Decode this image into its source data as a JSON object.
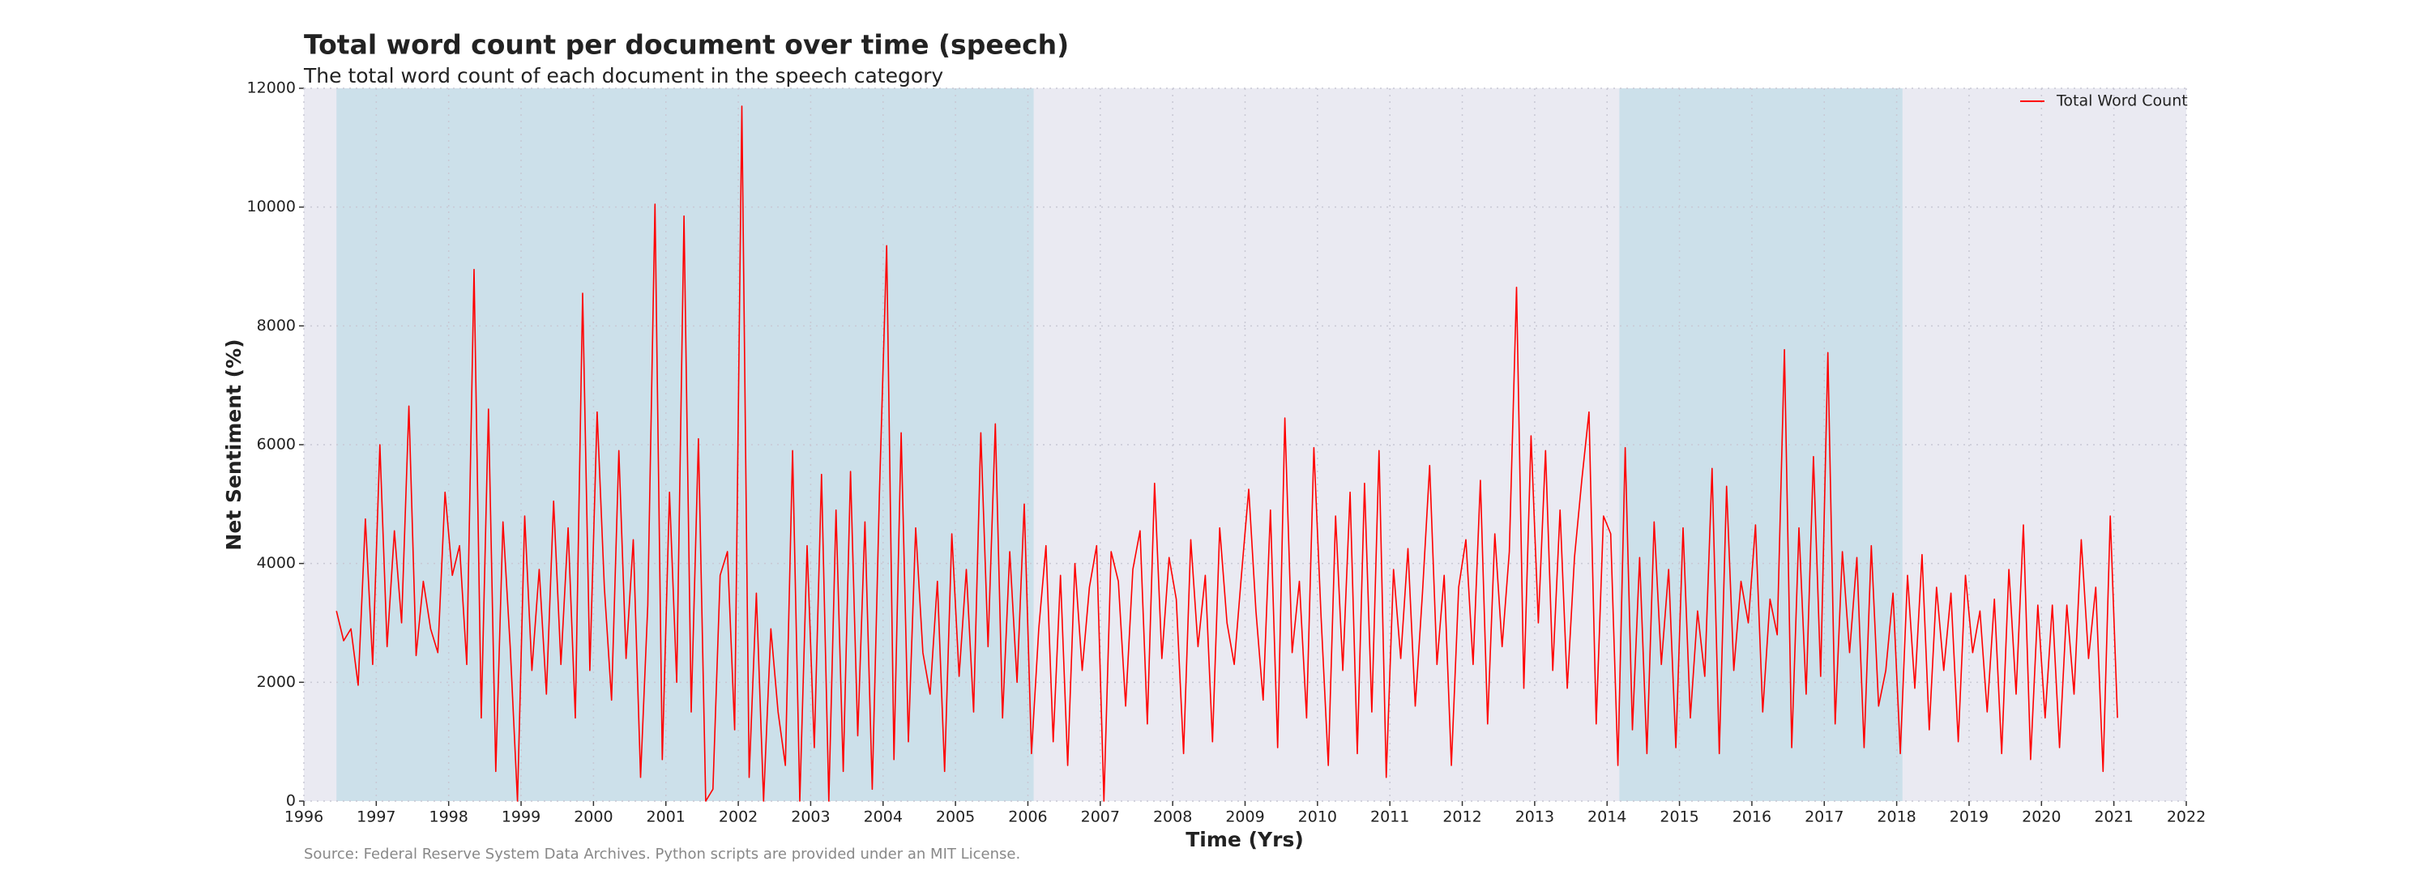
{
  "chart_data": {
    "type": "line",
    "title": "Total word count per document over time (speech)",
    "subtitle": "The total word count of each document in the speech category",
    "x_label": "Time (Yrs)",
    "y_label": "Net Sentiment (%)",
    "source": "Source: Federal Reserve System Data Archives. Python scripts are provided under an MIT License.",
    "xlim": [
      1996,
      2022
    ],
    "xticks": [
      1996,
      1997,
      1998,
      1999,
      2000,
      2001,
      2002,
      2003,
      2004,
      2005,
      2006,
      2007,
      2008,
      2009,
      2010,
      2011,
      2012,
      2013,
      2014,
      2015,
      2016,
      2017,
      2018,
      2019,
      2020,
      2021,
      2022
    ],
    "ylim": [
      0,
      12000
    ],
    "yticks": [
      0,
      2000,
      4000,
      6000,
      8000,
      10000,
      12000
    ],
    "grid": true,
    "legend": "upper right",
    "shaded_regions": [
      [
        1996.45,
        2006.08
      ],
      [
        2014.17,
        2018.08
      ]
    ],
    "shade_color": "#cce0ea",
    "background": "#eaeaf2",
    "x": [
      1996.45,
      1996.55,
      1996.65,
      1996.75,
      1996.85,
      1996.95,
      1997.05,
      1997.15,
      1997.25,
      1997.35,
      1997.45,
      1997.55,
      1997.65,
      1997.75,
      1997.85,
      1997.95,
      1998.05,
      1998.15,
      1998.25,
      1998.35,
      1998.45,
      1998.55,
      1998.65,
      1998.75,
      1998.85,
      1998.95,
      1999.05,
      1999.15,
      1999.25,
      1999.35,
      1999.45,
      1999.55,
      1999.65,
      1999.75,
      1999.85,
      1999.95,
      2000.05,
      2000.15,
      2000.25,
      2000.35,
      2000.45,
      2000.55,
      2000.65,
      2000.75,
      2000.85,
      2000.95,
      2001.05,
      2001.15,
      2001.25,
      2001.35,
      2001.45,
      2001.55,
      2001.65,
      2001.75,
      2001.85,
      2001.95,
      2002.05,
      2002.15,
      2002.25,
      2002.35,
      2002.45,
      2002.55,
      2002.65,
      2002.75,
      2002.85,
      2002.95,
      2003.05,
      2003.15,
      2003.25,
      2003.35,
      2003.45,
      2003.55,
      2003.65,
      2003.75,
      2003.85,
      2003.95,
      2004.05,
      2004.15,
      2004.25,
      2004.35,
      2004.45,
      2004.55,
      2004.65,
      2004.75,
      2004.85,
      2004.95,
      2005.05,
      2005.15,
      2005.25,
      2005.35,
      2005.45,
      2005.55,
      2005.65,
      2005.75,
      2005.85,
      2005.95,
      2006.05,
      2006.15,
      2006.25,
      2006.35,
      2006.45,
      2006.55,
      2006.65,
      2006.75,
      2006.85,
      2006.95,
      2007.05,
      2007.15,
      2007.25,
      2007.35,
      2007.45,
      2007.55,
      2007.65,
      2007.75,
      2007.85,
      2007.95,
      2008.05,
      2008.15,
      2008.25,
      2008.35,
      2008.45,
      2008.55,
      2008.65,
      2008.75,
      2008.85,
      2008.95,
      2009.05,
      2009.15,
      2009.25,
      2009.35,
      2009.45,
      2009.55,
      2009.65,
      2009.75,
      2009.85,
      2009.95,
      2010.05,
      2010.15,
      2010.25,
      2010.35,
      2010.45,
      2010.55,
      2010.65,
      2010.75,
      2010.85,
      2010.95,
      2011.05,
      2011.15,
      2011.25,
      2011.35,
      2011.45,
      2011.55,
      2011.65,
      2011.75,
      2011.85,
      2011.95,
      2012.05,
      2012.15,
      2012.25,
      2012.35,
      2012.45,
      2012.55,
      2012.65,
      2012.75,
      2012.85,
      2012.95,
      2013.05,
      2013.15,
      2013.25,
      2013.35,
      2013.45,
      2013.55,
      2013.65,
      2013.75,
      2013.85,
      2013.95,
      2014.05,
      2014.15,
      2014.25,
      2014.35,
      2014.45,
      2014.55,
      2014.65,
      2014.75,
      2014.85,
      2014.95,
      2015.05,
      2015.15,
      2015.25,
      2015.35,
      2015.45,
      2015.55,
      2015.65,
      2015.75,
      2015.85,
      2015.95,
      2016.05,
      2016.15,
      2016.25,
      2016.35,
      2016.45,
      2016.55,
      2016.65,
      2016.75,
      2016.85,
      2016.95,
      2017.05,
      2017.15,
      2017.25,
      2017.35,
      2017.45,
      2017.55,
      2017.65,
      2017.75,
      2017.85,
      2017.95,
      2018.05,
      2018.15,
      2018.25,
      2018.35,
      2018.45,
      2018.55,
      2018.65,
      2018.75,
      2018.85,
      2018.95,
      2019.05,
      2019.15,
      2019.25,
      2019.35,
      2019.45,
      2019.55,
      2019.65,
      2019.75,
      2019.85,
      2019.95,
      2020.05,
      2020.15,
      2020.25,
      2020.35,
      2020.45,
      2020.55,
      2020.65,
      2020.75,
      2020.85,
      2020.95,
      2021.05
    ],
    "series": [
      {
        "name": "Total Word Count",
        "color": "#ff0000",
        "values": [
          3200,
          2700,
          2900,
          1950,
          4750,
          2300,
          6000,
          2600,
          4550,
          3000,
          6650,
          2450,
          3700,
          2900,
          2500,
          5200,
          3800,
          4300,
          2300,
          8950,
          1400,
          6600,
          500,
          4700,
          2600,
          0,
          4800,
          2200,
          3900,
          1800,
          5050,
          2300,
          4600,
          1400,
          8550,
          2200,
          6550,
          3600,
          1700,
          5900,
          2400,
          4400,
          400,
          3300,
          10050,
          700,
          5200,
          2000,
          9850,
          1500,
          6100,
          0,
          200,
          3800,
          4200,
          1200,
          11700,
          400,
          3500,
          0,
          2900,
          1500,
          600,
          5900,
          0,
          4300,
          900,
          5500,
          0,
          4900,
          500,
          5550,
          1100,
          4700,
          200,
          5200,
          9350,
          700,
          6200,
          1000,
          4600,
          2500,
          1800,
          3700,
          500,
          4500,
          2100,
          3900,
          1500,
          6200,
          2600,
          6350,
          1400,
          4200,
          2000,
          5000,
          800,
          2900,
          4300,
          1000,
          3800,
          600,
          4000,
          2200,
          3600,
          4300,
          0,
          4200,
          3700,
          1600,
          3900,
          4550,
          1300,
          5350,
          2400,
          4100,
          3400,
          800,
          4400,
          2600,
          3800,
          1000,
          4600,
          3000,
          2300,
          3800,
          5250,
          3200,
          1700,
          4900,
          900,
          6450,
          2500,
          3700,
          1400,
          5950,
          3100,
          600,
          4800,
          2200,
          5200,
          800,
          5350,
          1500,
          5900,
          400,
          3900,
          2400,
          4250,
          1600,
          3500,
          5650,
          2300,
          3800,
          600,
          3600,
          4400,
          2300,
          5400,
          1300,
          4500,
          2600,
          4200,
          8650,
          1900,
          6150,
          3000,
          5900,
          2200,
          4900,
          1900,
          4100,
          5400,
          6550,
          1300,
          4800,
          4500,
          600,
          5950,
          1200,
          4100,
          800,
          4700,
          2300,
          3900,
          900,
          4600,
          1400,
          3200,
          2100,
          5600,
          800,
          5300,
          2200,
          3700,
          3000,
          4650,
          1500,
          3400,
          2800,
          7600,
          900,
          4600,
          1800,
          5800,
          2100,
          7550,
          1300,
          4200,
          2500,
          4100,
          900,
          4300,
          1600,
          2200,
          3500,
          800,
          3800,
          1900,
          4150,
          1200,
          3600,
          2200,
          3500,
          1000,
          3800,
          2500,
          3200,
          1500,
          3400,
          800,
          3900,
          1800,
          4650,
          700,
          3300,
          1400,
          3300,
          900,
          3300,
          1800,
          4400,
          2400,
          3600,
          500,
          4800,
          1400
        ]
      }
    ]
  }
}
